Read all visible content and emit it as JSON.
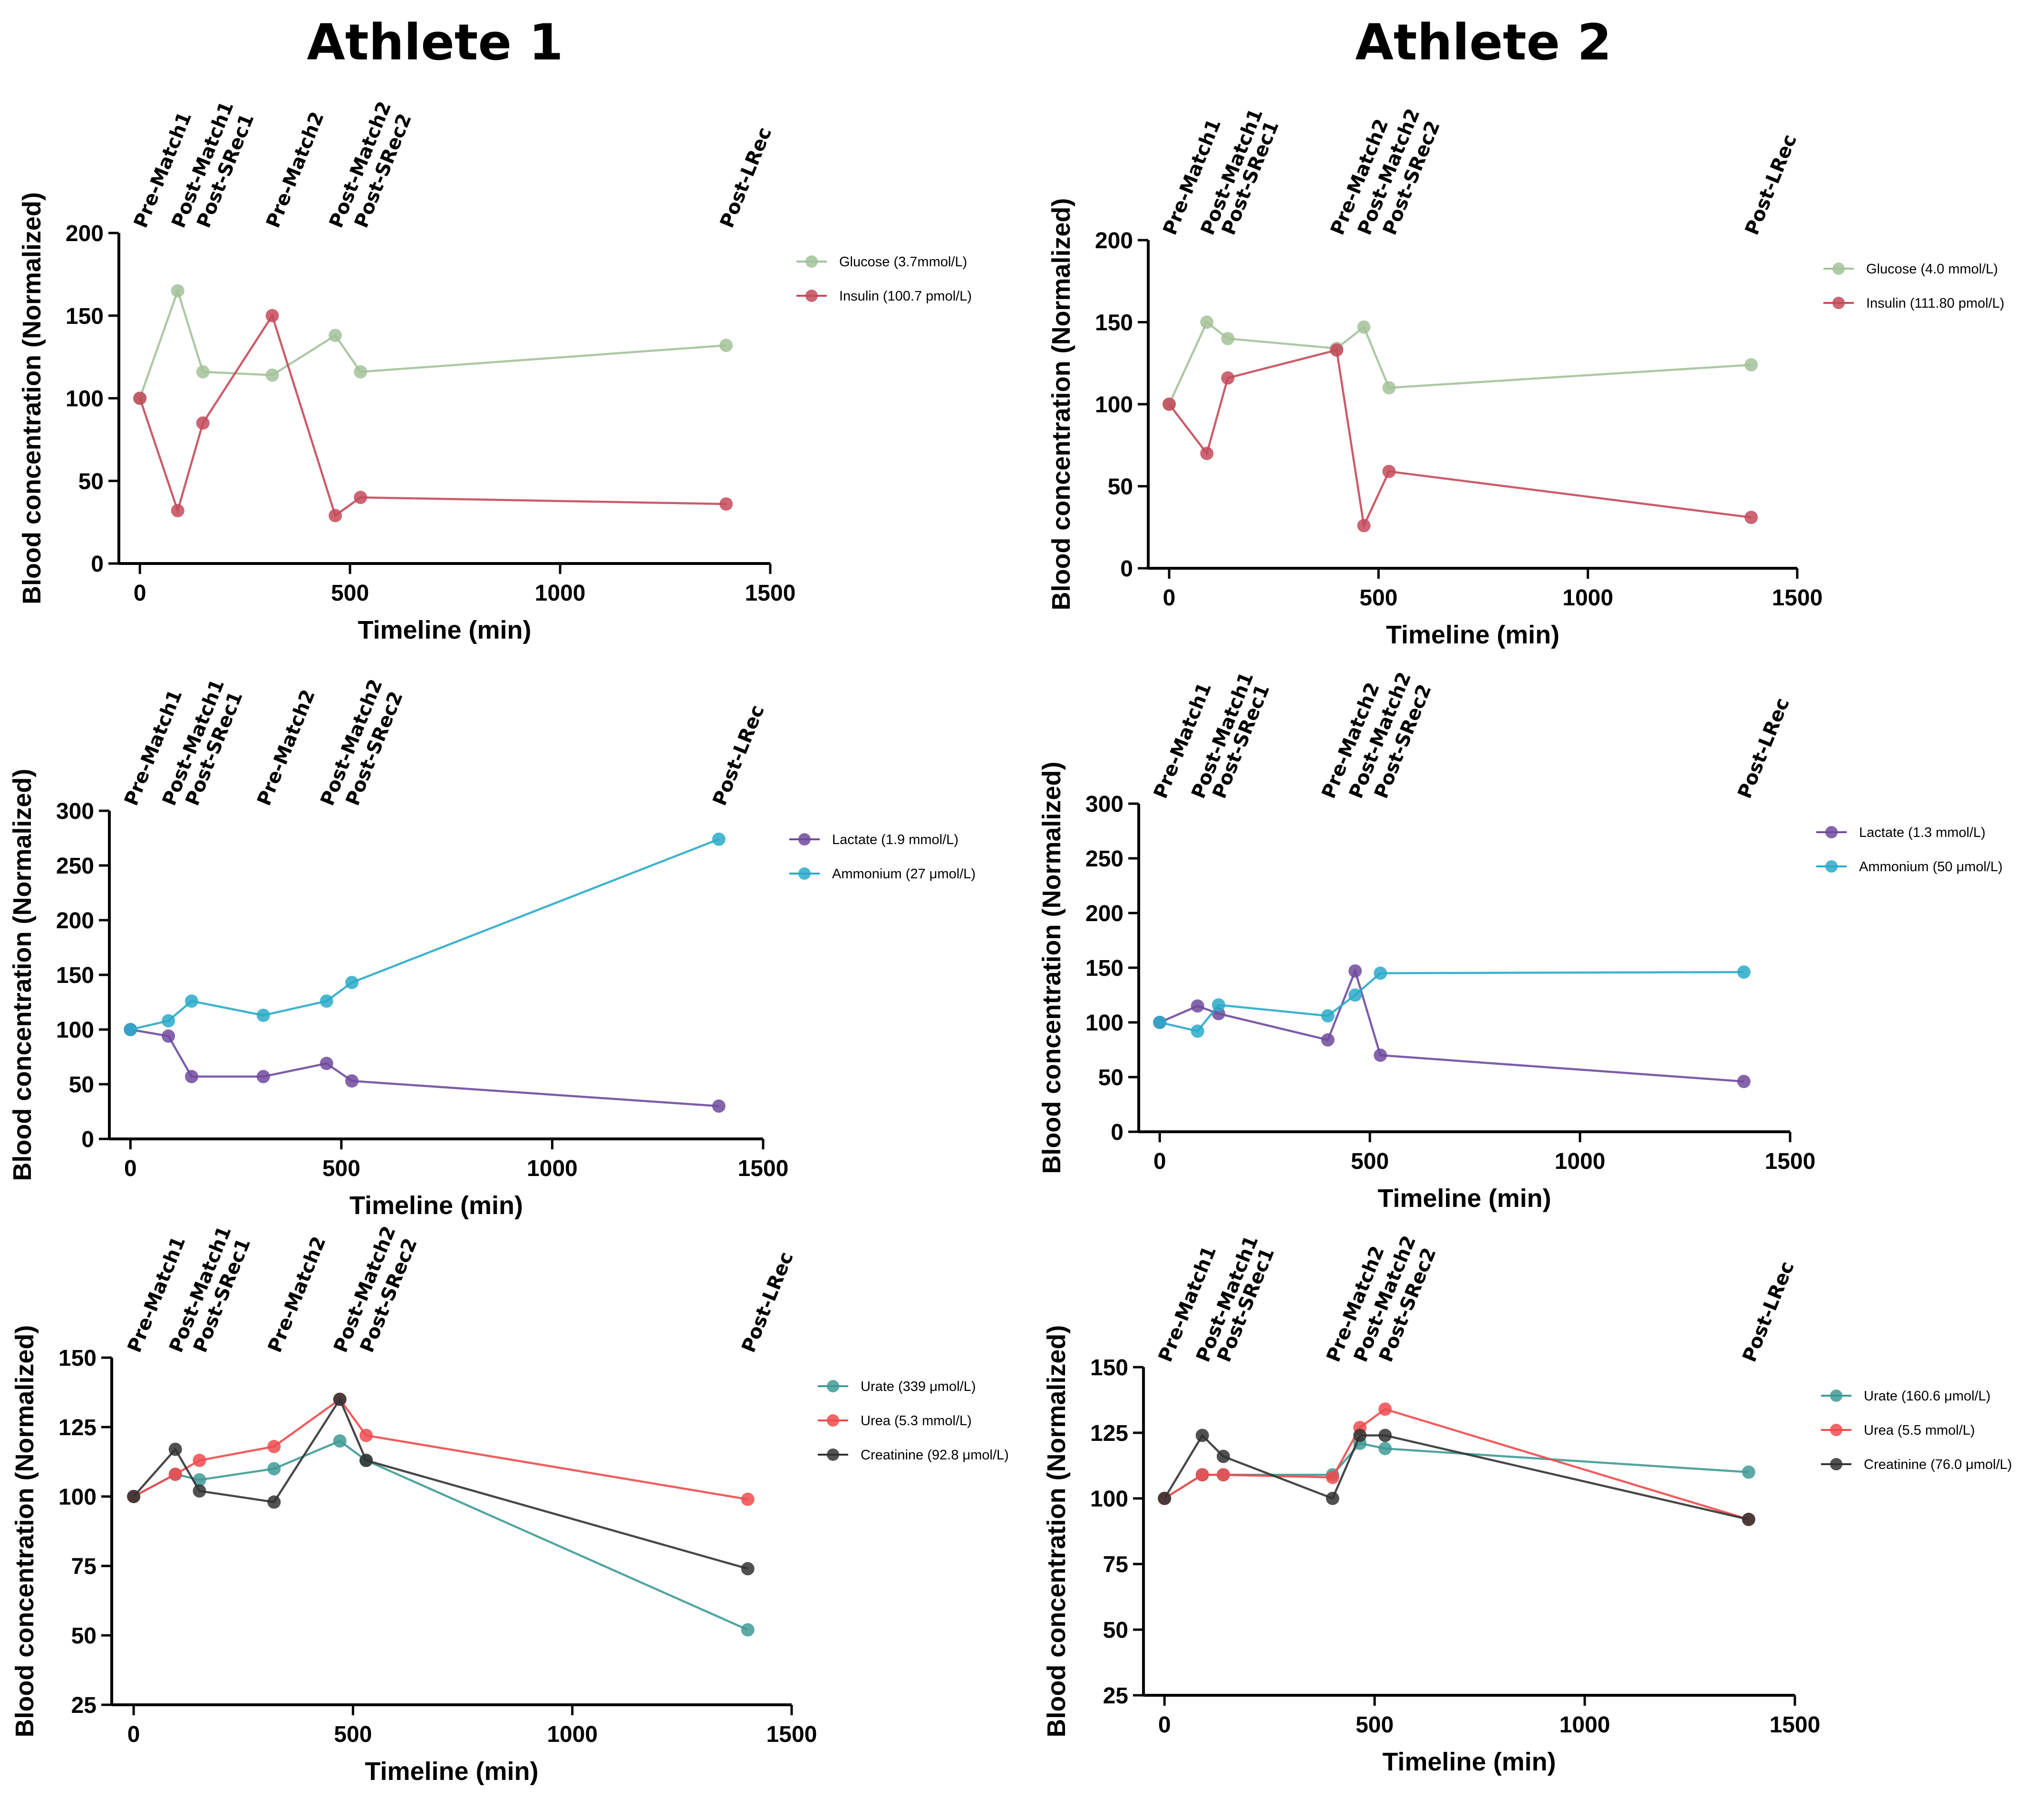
{
  "titles": {
    "athlete1": "Athlete 1",
    "athlete2": "Athlete 2"
  },
  "chart_data": [
    {
      "id": "a1-glucose-insulin",
      "type": "line",
      "athlete": "Athlete 1",
      "xlabel": "Timeline (min)",
      "ylabel": "Blood concentration (Normalized)",
      "xlim": [
        -50,
        1500
      ],
      "ylim": [
        0,
        200
      ],
      "xticks": [
        0,
        500,
        1000,
        1500
      ],
      "yticks": [
        0,
        50,
        100,
        150,
        200
      ],
      "events": [
        {
          "label": "Pre-Match1",
          "x": 0
        },
        {
          "label": "Post-Match1",
          "x": 90
        },
        {
          "label": "Post-SRec1",
          "x": 150
        },
        {
          "label": "Pre-Match2",
          "x": 315
        },
        {
          "label": "Post-Match2",
          "x": 465
        },
        {
          "label": "Post-SRec2",
          "x": 525
        },
        {
          "label": "Post-LRec",
          "x": 1395
        }
      ],
      "series": [
        {
          "name": "Glucose (3.7mmol/L)",
          "color": "#a3c29a",
          "x": [
            0,
            90,
            150,
            315,
            465,
            525,
            1395
          ],
          "y": [
            100,
            165,
            116,
            114,
            138,
            116,
            132
          ]
        },
        {
          "name": "Insulin (100.7 pmol/L)",
          "color": "#c44a5a",
          "x": [
            0,
            90,
            150,
            315,
            465,
            525,
            1395
          ],
          "y": [
            100,
            32,
            85,
            150,
            29,
            40,
            36
          ]
        }
      ]
    },
    {
      "id": "a2-glucose-insulin",
      "type": "line",
      "athlete": "Athlete 2",
      "xlabel": "Timeline (min)",
      "ylabel": "Blood concentration (Normalized)",
      "xlim": [
        -50,
        1500
      ],
      "ylim": [
        0,
        200
      ],
      "xticks": [
        0,
        500,
        1000,
        1500
      ],
      "yticks": [
        0,
        50,
        100,
        150,
        200
      ],
      "events": [
        {
          "label": "Pre-Match1",
          "x": 0
        },
        {
          "label": "Post-Match1",
          "x": 90
        },
        {
          "label": "Post-SRec1",
          "x": 140
        },
        {
          "label": "Pre-Match2",
          "x": 400
        },
        {
          "label": "Post-Match2",
          "x": 465
        },
        {
          "label": "Post-SRec2",
          "x": 525
        },
        {
          "label": "Post-LRec",
          "x": 1390
        }
      ],
      "series": [
        {
          "name": "Glucose (4.0 mmol/L)",
          "color": "#a3c29a",
          "x": [
            0,
            90,
            140,
            400,
            465,
            525,
            1390
          ],
          "y": [
            100,
            150,
            140,
            134,
            147,
            110,
            124
          ]
        },
        {
          "name": "Insulin (111.80 pmol/L)",
          "color": "#c44a5a",
          "x": [
            0,
            90,
            140,
            400,
            465,
            525,
            1390
          ],
          "y": [
            100,
            70,
            116,
            133,
            26,
            59,
            31
          ]
        }
      ]
    },
    {
      "id": "a1-lactate-ammonium",
      "type": "line",
      "athlete": "Athlete 1",
      "xlabel": "Timeline (min)",
      "ylabel": "Blood concentration (Normalized)",
      "xlim": [
        -50,
        1500
      ],
      "ylim": [
        0,
        300
      ],
      "xticks": [
        0,
        500,
        1000,
        1500
      ],
      "yticks": [
        0,
        50,
        100,
        150,
        200,
        250,
        300
      ],
      "events": [
        {
          "label": "Pre-Match1",
          "x": 0
        },
        {
          "label": "Post-Match1",
          "x": 90
        },
        {
          "label": "Post-SRec1",
          "x": 145
        },
        {
          "label": "Pre-Match2",
          "x": 315
        },
        {
          "label": "Post-Match2",
          "x": 465
        },
        {
          "label": "Post-SRec2",
          "x": 525
        },
        {
          "label": "Post-LRec",
          "x": 1395
        }
      ],
      "series": [
        {
          "name": "Lactate (1.9 mmol/L)",
          "color": "#6f4a9e",
          "x": [
            0,
            90,
            145,
            315,
            465,
            525,
            1395
          ],
          "y": [
            100,
            94,
            57,
            57,
            69,
            53,
            30
          ]
        },
        {
          "name": "Ammonium (27 μmol/L)",
          "color": "#2aaac9",
          "x": [
            0,
            90,
            145,
            315,
            465,
            525,
            1395
          ],
          "y": [
            100,
            108,
            126,
            113,
            126,
            143,
            274
          ]
        }
      ]
    },
    {
      "id": "a2-lactate-ammonium",
      "type": "line",
      "athlete": "Athlete 2",
      "xlabel": "Timeline (min)",
      "ylabel": "Blood concentration (Normalized)",
      "xlim": [
        -50,
        1500
      ],
      "ylim": [
        0,
        300
      ],
      "xticks": [
        0,
        500,
        1000,
        1500
      ],
      "yticks": [
        0,
        50,
        100,
        150,
        200,
        250,
        300
      ],
      "events": [
        {
          "label": "Pre-Match1",
          "x": 0
        },
        {
          "label": "Post-Match1",
          "x": 90
        },
        {
          "label": "Post-SRec1",
          "x": 140
        },
        {
          "label": "Pre-Match2",
          "x": 400
        },
        {
          "label": "Post-Match2",
          "x": 465
        },
        {
          "label": "Post-SRec2",
          "x": 525
        },
        {
          "label": "Post-LRec",
          "x": 1390
        }
      ],
      "series": [
        {
          "name": "Lactate (1.3 mmol/L)",
          "color": "#6f4a9e",
          "x": [
            0,
            90,
            140,
            400,
            465,
            525,
            1390
          ],
          "y": [
            100,
            115,
            108,
            84,
            147,
            70,
            46
          ]
        },
        {
          "name": "Ammonium (50 μmol/L)",
          "color": "#2aaac9",
          "x": [
            0,
            90,
            140,
            400,
            465,
            525,
            1390
          ],
          "y": [
            100,
            92,
            116,
            106,
            125,
            145,
            146
          ]
        }
      ]
    },
    {
      "id": "a1-urate-urea-creatinine",
      "type": "line",
      "athlete": "Athlete 1",
      "xlabel": "Timeline (min)",
      "ylabel": "Blood concentration (Normalized)",
      "xlim": [
        -50,
        1500
      ],
      "ylim": [
        25,
        150
      ],
      "xticks": [
        0,
        500,
        1000,
        1500
      ],
      "yticks": [
        25,
        50,
        75,
        100,
        125,
        150
      ],
      "events": [
        {
          "label": "Pre-Match1",
          "x": 0
        },
        {
          "label": "Post-Match1",
          "x": 95
        },
        {
          "label": "Post-SRec1",
          "x": 150
        },
        {
          "label": "Pre-Match2",
          "x": 320
        },
        {
          "label": "Post-Match2",
          "x": 470
        },
        {
          "label": "Post-SRec2",
          "x": 530
        },
        {
          "label": "Post-LRec",
          "x": 1400
        }
      ],
      "series": [
        {
          "name": "Urate (339 μmol/L)",
          "color": "#3f9a96",
          "x": [
            0,
            95,
            150,
            320,
            470,
            530,
            1400
          ],
          "y": [
            100,
            108,
            106,
            110,
            120,
            113,
            52
          ]
        },
        {
          "name": "Urea (5.3 mmol/L)",
          "color": "#ee4b4e",
          "x": [
            0,
            95,
            150,
            320,
            470,
            530,
            1400
          ],
          "y": [
            100,
            108,
            113,
            118,
            135,
            122,
            99
          ]
        },
        {
          "name": "Creatinine (92.8 μmol/L)",
          "color": "#333333",
          "x": [
            0,
            95,
            150,
            320,
            470,
            530,
            1400
          ],
          "y": [
            100,
            117,
            102,
            98,
            135,
            113,
            74
          ]
        }
      ]
    },
    {
      "id": "a2-urate-urea-creatinine",
      "type": "line",
      "athlete": "Athlete 2",
      "xlabel": "Timeline (min)",
      "ylabel": "Blood concentration (Normalized)",
      "xlim": [
        -50,
        1500
      ],
      "ylim": [
        25,
        150
      ],
      "xticks": [
        0,
        500,
        1000,
        1500
      ],
      "yticks": [
        25,
        50,
        75,
        100,
        125,
        150
      ],
      "events": [
        {
          "label": "Pre-Match1",
          "x": 0
        },
        {
          "label": "Post-Match1",
          "x": 90
        },
        {
          "label": "Post-SRec1",
          "x": 140
        },
        {
          "label": "Pre-Match2",
          "x": 400
        },
        {
          "label": "Post-Match2",
          "x": 465
        },
        {
          "label": "Post-SRec2",
          "x": 525
        },
        {
          "label": "Post-LRec",
          "x": 1390
        }
      ],
      "series": [
        {
          "name": "Urate (160.6 μmol/L)",
          "color": "#3f9a96",
          "x": [
            0,
            90,
            140,
            400,
            465,
            525,
            1390
          ],
          "y": [
            100,
            109,
            109,
            109,
            121,
            119,
            110
          ]
        },
        {
          "name": "Urea (5.5 mmol/L)",
          "color": "#ee4b4e",
          "x": [
            0,
            90,
            140,
            400,
            465,
            525,
            1390
          ],
          "y": [
            100,
            109,
            109,
            108,
            127,
            134,
            92
          ]
        },
        {
          "name": "Creatinine (76.0 μmol/L)",
          "color": "#333333",
          "x": [
            0,
            90,
            140,
            400,
            465,
            525,
            1390
          ],
          "y": [
            100,
            124,
            116,
            100,
            124,
            124,
            92
          ]
        }
      ]
    }
  ]
}
